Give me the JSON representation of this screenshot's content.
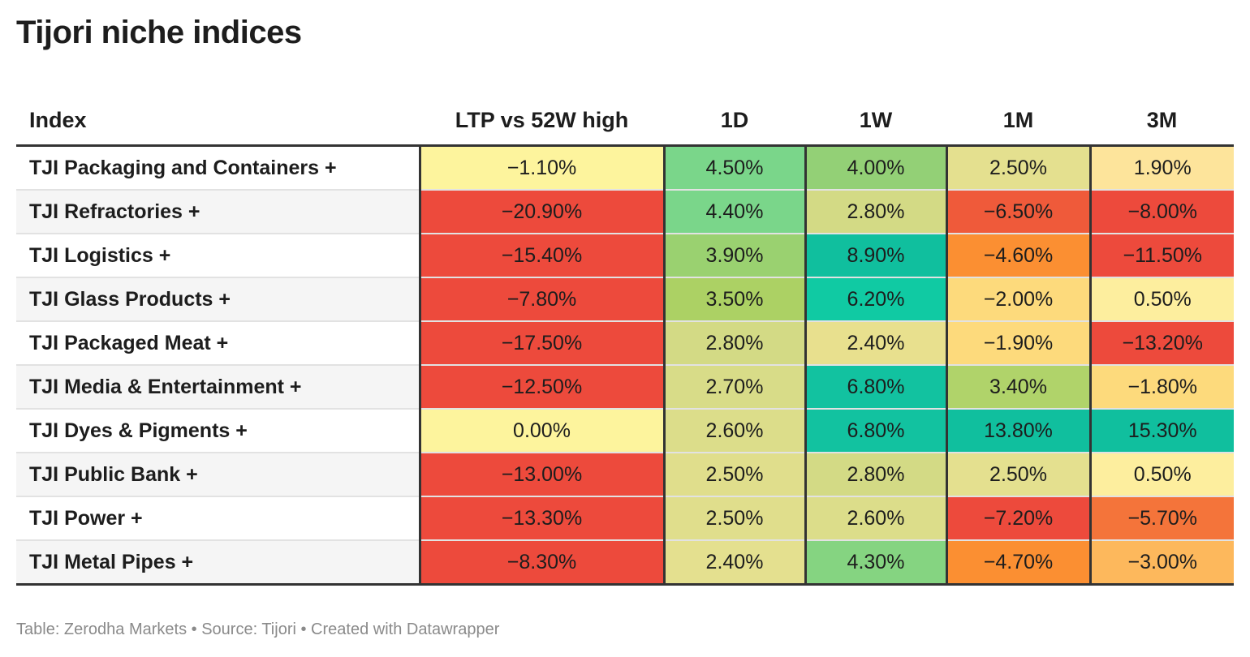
{
  "chart_data": {
    "type": "table",
    "title": "Tijori niche indices",
    "columns": [
      "Index",
      "LTP vs 52W high",
      "1D",
      "1W",
      "1M",
      "3M"
    ],
    "rows": [
      {
        "label": "TJI Packaging and Containers +",
        "values": [
          -1.1,
          4.5,
          4.0,
          2.5,
          1.9
        ]
      },
      {
        "label": "TJI Refractories +",
        "values": [
          -20.9,
          4.4,
          2.8,
          -6.5,
          -8.0
        ]
      },
      {
        "label": "TJI Logistics +",
        "values": [
          -15.4,
          3.9,
          8.9,
          -4.6,
          -11.5
        ]
      },
      {
        "label": "TJI Glass Products +",
        "values": [
          -7.8,
          3.5,
          6.2,
          -2.0,
          0.5
        ]
      },
      {
        "label": "TJI Packaged Meat +",
        "values": [
          -17.5,
          2.8,
          2.4,
          -1.9,
          -13.2
        ]
      },
      {
        "label": "TJI Media & Entertainment +",
        "values": [
          -12.5,
          2.7,
          6.8,
          3.4,
          -1.8
        ]
      },
      {
        "label": "TJI Dyes & Pigments +",
        "values": [
          0.0,
          2.6,
          6.8,
          13.8,
          15.3
        ]
      },
      {
        "label": "TJI Public Bank +",
        "values": [
          -13.0,
          2.5,
          2.8,
          2.5,
          0.5
        ]
      },
      {
        "label": "TJI Power +",
        "values": [
          -13.3,
          2.5,
          2.6,
          -7.2,
          -5.7
        ]
      },
      {
        "label": "TJI Metal Pipes +",
        "values": [
          -8.3,
          2.4,
          4.3,
          -4.7,
          -3.0
        ]
      }
    ],
    "display": [
      [
        "−1.10%",
        "4.50%",
        "4.00%",
        "2.50%",
        "1.90%"
      ],
      [
        "−20.90%",
        "4.40%",
        "2.80%",
        "−6.50%",
        "−8.00%"
      ],
      [
        "−15.40%",
        "3.90%",
        "8.90%",
        "−4.60%",
        "−11.50%"
      ],
      [
        "−7.80%",
        "3.50%",
        "6.20%",
        "−2.00%",
        "0.50%"
      ],
      [
        "−17.50%",
        "2.80%",
        "2.40%",
        "−1.90%",
        "−13.20%"
      ],
      [
        "−12.50%",
        "2.70%",
        "6.80%",
        "3.40%",
        "−1.80%"
      ],
      [
        "0.00%",
        "2.60%",
        "6.80%",
        "13.80%",
        "15.30%"
      ],
      [
        "−13.00%",
        "2.50%",
        "2.80%",
        "2.50%",
        "0.50%"
      ],
      [
        "−13.30%",
        "2.50%",
        "2.60%",
        "−7.20%",
        "−5.70%"
      ],
      [
        "−8.30%",
        "2.40%",
        "4.30%",
        "−4.70%",
        "−3.00%"
      ]
    ],
    "cell_colors": [
      [
        "#fdf49d",
        "#7ad68a",
        "#93d076",
        "#e4e08f",
        "#fde49b"
      ],
      [
        "#ed4a3c",
        "#7ad68a",
        "#d3da85",
        "#ef5a3a",
        "#ed4a3c"
      ],
      [
        "#ed4a3c",
        "#9ad170",
        "#10bf9e",
        "#fb8f32",
        "#ed4a3c"
      ],
      [
        "#ed4a3c",
        "#acd164",
        "#10caa3",
        "#fdda7c",
        "#fdee9e"
      ],
      [
        "#ed4a3c",
        "#d3da85",
        "#e8e08e",
        "#fdda7c",
        "#ed4a3c"
      ],
      [
        "#ed4a3c",
        "#d8dc88",
        "#12c2a0",
        "#b0d36a",
        "#fdda7c"
      ],
      [
        "#fdf49d",
        "#dcdd8a",
        "#12c2a0",
        "#10bf9e",
        "#10bf9e"
      ],
      [
        "#ed4a3c",
        "#e0de8c",
        "#d3da85",
        "#e4e08f",
        "#fdee9e"
      ],
      [
        "#ed4a3c",
        "#e0de8c",
        "#dcdd8a",
        "#ed4a3c",
        "#f4743a"
      ],
      [
        "#ed4a3c",
        "#e4e08f",
        "#85d481",
        "#fb8f32",
        "#fdb85c"
      ]
    ]
  },
  "footer": "Table: Zerodha Markets • Source: Tijori • Created with Datawrapper"
}
